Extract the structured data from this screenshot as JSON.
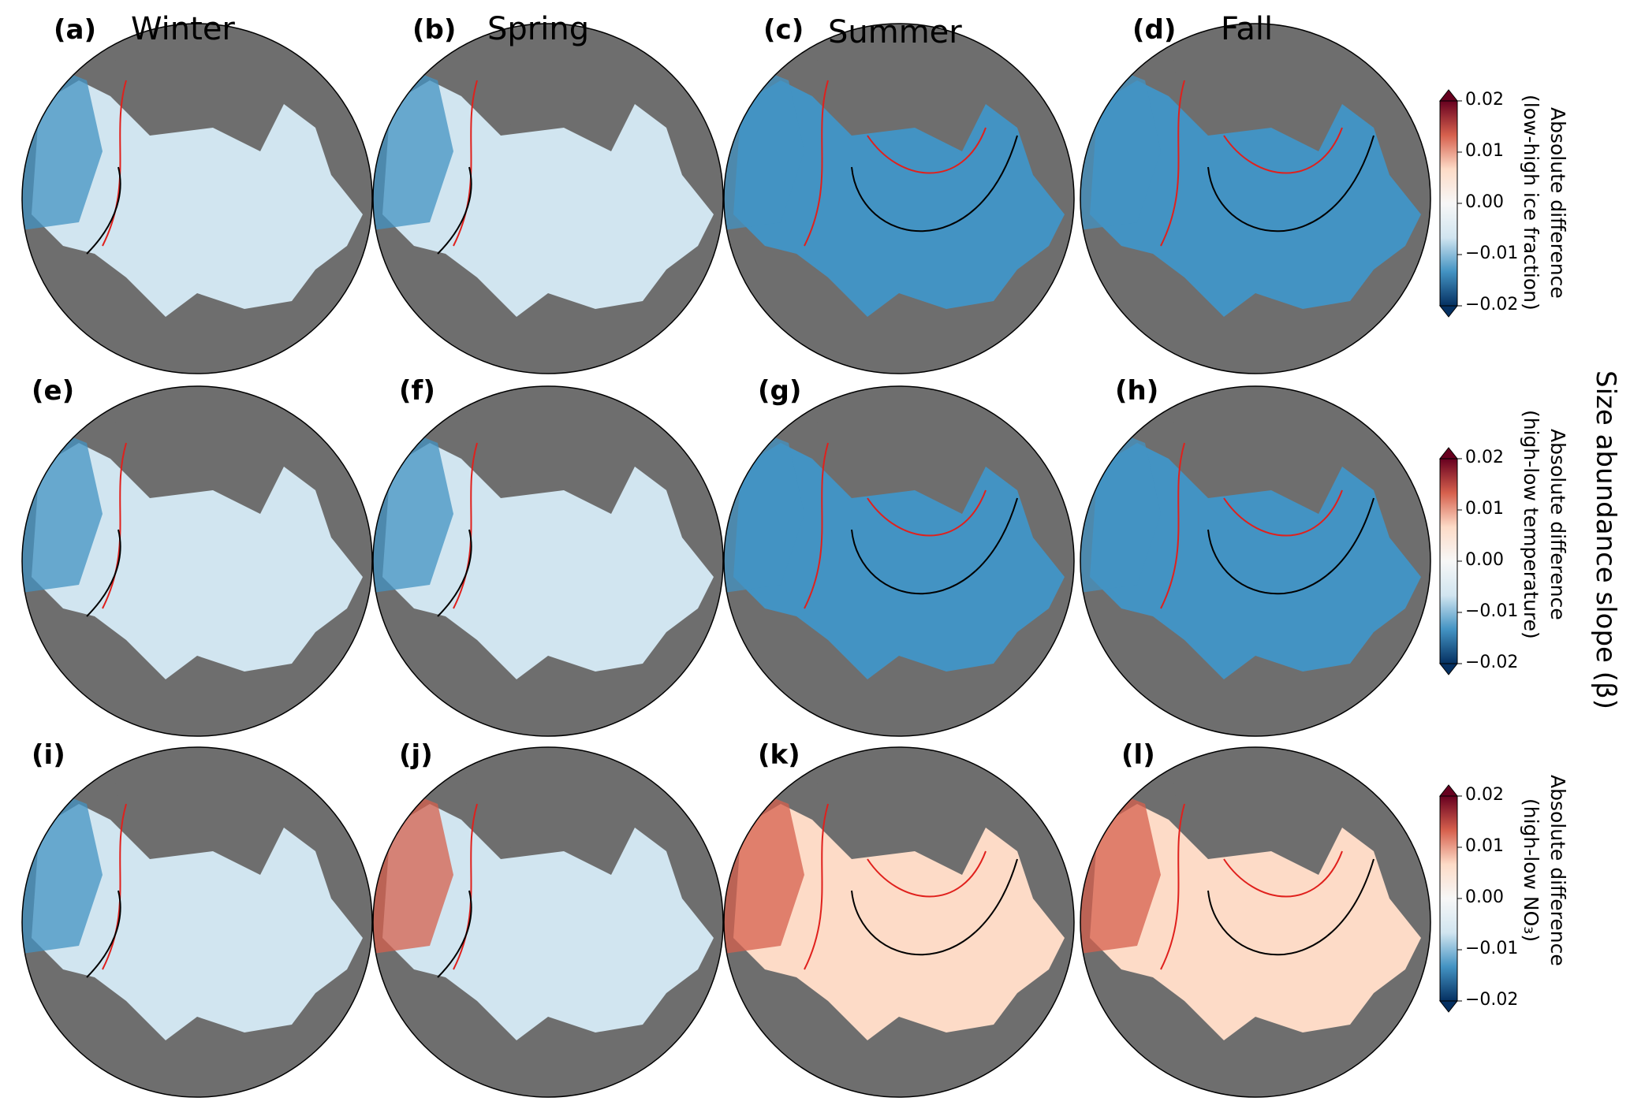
{
  "seasons": [
    "Winter",
    "Spring",
    "Summer",
    "Fall"
  ],
  "panel_labels": [
    "(a)",
    "(b)",
    "(c)",
    "(d)",
    "(e)",
    "(f)",
    "(g)",
    "(h)",
    "(i)",
    "(j)",
    "(k)",
    "(l)"
  ],
  "overall_label": "Size abundance slope (β)",
  "colorbars": [
    {
      "line1": "Absolute difference",
      "line2": "(low-high ice fraction)"
    },
    {
      "line1": "Absolute difference",
      "line2": "(high-low temperature)"
    },
    {
      "line1": "Absolute difference",
      "line2": "(high-low NO₃)"
    }
  ],
  "colorbar_ticks": [
    "0.02",
    "0.01",
    "0.00",
    "−0.01",
    "−0.02"
  ],
  "colorbar_range": [
    -0.02,
    0.02
  ],
  "colormap": "RdBu_r",
  "colors": {
    "land": "#6e6e6e",
    "strong_negative": "#053061",
    "negative": "#4393c3",
    "weak_negative": "#d1e5f0",
    "neutral": "#f7f7f7",
    "weak_positive": "#fddbc7",
    "positive": "#d6604d",
    "strong_positive": "#67001f",
    "contour_black": "#000000",
    "contour_red": "#e0201c"
  },
  "panel_tone": [
    [
      "weak_negative",
      "weak_negative",
      "negative",
      "negative"
    ],
    [
      "weak_negative",
      "weak_negative",
      "negative",
      "negative"
    ],
    [
      "weak_negative",
      "weak_negative",
      "weak_positive",
      "weak_positive"
    ]
  ]
}
